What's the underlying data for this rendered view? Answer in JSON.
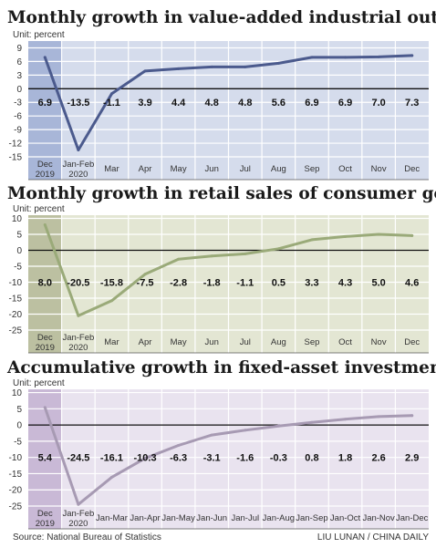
{
  "source": "Source: National Bureau of Statistics",
  "credit": "LIU LUNAN / CHINA DAILY",
  "chart_data": [
    {
      "type": "line",
      "title": "Monthly growth in value-added industrial output",
      "unit": "Unit: percent",
      "categories": [
        [
          "Dec",
          "2019"
        ],
        [
          "Jan-Feb",
          "2020"
        ],
        [
          "Mar"
        ],
        [
          "Apr"
        ],
        [
          "May"
        ],
        [
          "Jun"
        ],
        [
          "Jul"
        ],
        [
          "Aug"
        ],
        [
          "Sep"
        ],
        [
          "Oct"
        ],
        [
          "Nov"
        ],
        [
          "Dec"
        ]
      ],
      "values": [
        6.9,
        -13.5,
        -1.1,
        3.9,
        4.4,
        4.8,
        4.8,
        5.6,
        6.9,
        6.9,
        7.0,
        7.3
      ],
      "value_labels": [
        "6.9",
        "-13.5",
        "-1.1",
        "3.9",
        "4.4",
        "4.8",
        "4.8",
        "5.6",
        "6.9",
        "6.9",
        "7.0",
        "7.3"
      ],
      "yticks": [
        9,
        6,
        3,
        0,
        -3,
        -6,
        -9,
        -12,
        -15
      ],
      "ylim": [
        -15,
        10.5
      ],
      "colors": {
        "background": "#d5dcec",
        "highlight": "#a8b6d8",
        "line": "#4b5a8d",
        "grid": "#ffffff"
      }
    },
    {
      "type": "line",
      "title": "Monthly growth in retail sales of consumer goods",
      "unit": "Unit: percent",
      "categories": [
        [
          "Dec",
          "2019"
        ],
        [
          "Jan-Feb",
          "2020"
        ],
        [
          "Mar"
        ],
        [
          "Apr"
        ],
        [
          "May"
        ],
        [
          "Jun"
        ],
        [
          "Jul"
        ],
        [
          "Aug"
        ],
        [
          "Sep"
        ],
        [
          "Oct"
        ],
        [
          "Nov"
        ],
        [
          "Dec"
        ]
      ],
      "values": [
        8.0,
        -20.5,
        -15.8,
        -7.5,
        -2.8,
        -1.8,
        -1.1,
        0.5,
        3.3,
        4.3,
        5.0,
        4.6
      ],
      "value_labels": [
        "8.0",
        "-20.5",
        "-15.8",
        "-7.5",
        "-2.8",
        "-1.8",
        "-1.1",
        "0.5",
        "3.3",
        "4.3",
        "5.0",
        "4.6"
      ],
      "yticks": [
        10,
        5,
        0,
        -5,
        -10,
        -15,
        -20,
        -25
      ],
      "ylim": [
        -25,
        11
      ],
      "colors": {
        "background": "#e3e6d3",
        "highlight": "#bcc0a1",
        "line": "#9aaa79",
        "grid": "#ffffff"
      }
    },
    {
      "type": "line",
      "title": "Accumulative growth in fixed-asset investment",
      "unit": "Unit: percent",
      "categories": [
        [
          "Dec",
          "2019"
        ],
        [
          "Jan-Feb",
          "2020"
        ],
        [
          "Jan-Mar"
        ],
        [
          "Jan-Apr"
        ],
        [
          "Jan-May"
        ],
        [
          "Jan-Jun"
        ],
        [
          "Jan-Jul"
        ],
        [
          "Jan-Aug"
        ],
        [
          "Jan-Sep"
        ],
        [
          "Jan-Oct"
        ],
        [
          "Jan-Nov"
        ],
        [
          "Jan-Dec"
        ]
      ],
      "values": [
        5.4,
        -24.5,
        -16.1,
        -10.3,
        -6.3,
        -3.1,
        -1.6,
        -0.3,
        0.8,
        1.8,
        2.6,
        2.9
      ],
      "value_labels": [
        "5.4",
        "-24.5",
        "-16.1",
        "-10.3",
        "-6.3",
        "-3.1",
        "-1.6",
        "-0.3",
        "0.8",
        "1.8",
        "2.6",
        "2.9"
      ],
      "yticks": [
        10,
        5,
        0,
        -5,
        -10,
        -15,
        -20,
        -25
      ],
      "ylim": [
        -25,
        11
      ],
      "colors": {
        "background": "#e9e3ef",
        "highlight": "#c9b9d6",
        "line": "#a79ab3",
        "grid": "#ffffff"
      }
    }
  ]
}
